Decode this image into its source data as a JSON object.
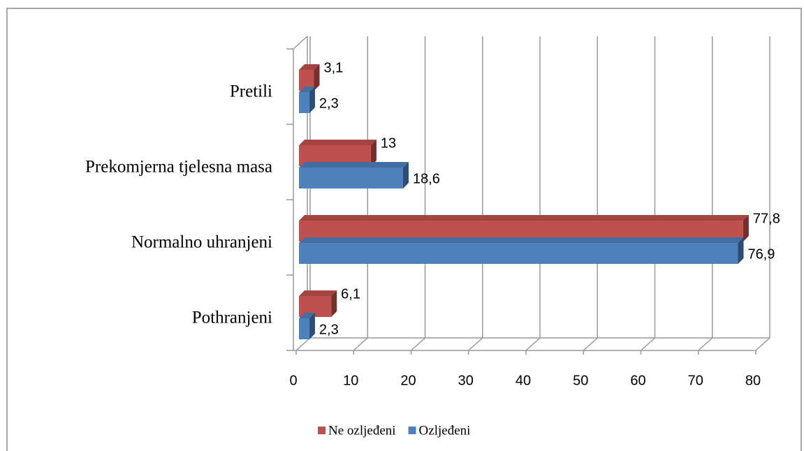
{
  "chart_data": {
    "type": "bar3d_horizontal",
    "categories": [
      "Pretili",
      "Prekomjerna tjelesna masa",
      "Normalno uhranjeni",
      "Pothranjeni"
    ],
    "series": [
      {
        "name": "Ne ozljeđeni",
        "color": "#c0504d",
        "values": [
          3.1,
          13,
          77.8,
          6.1
        ],
        "value_labels": [
          "3,1",
          "13",
          "77,8",
          "6,1"
        ]
      },
      {
        "name": "Ozljeđeni",
        "color": "#4f81bd",
        "values": [
          2.3,
          18.6,
          76.9,
          2.3
        ],
        "value_labels": [
          "2,3",
          "18,6",
          "76,9",
          "2,3"
        ]
      }
    ],
    "xlim": [
      0,
      80
    ],
    "xticks": [
      0,
      10,
      20,
      30,
      40,
      50,
      60,
      70,
      80
    ],
    "grid": true,
    "legend": "bottom"
  }
}
